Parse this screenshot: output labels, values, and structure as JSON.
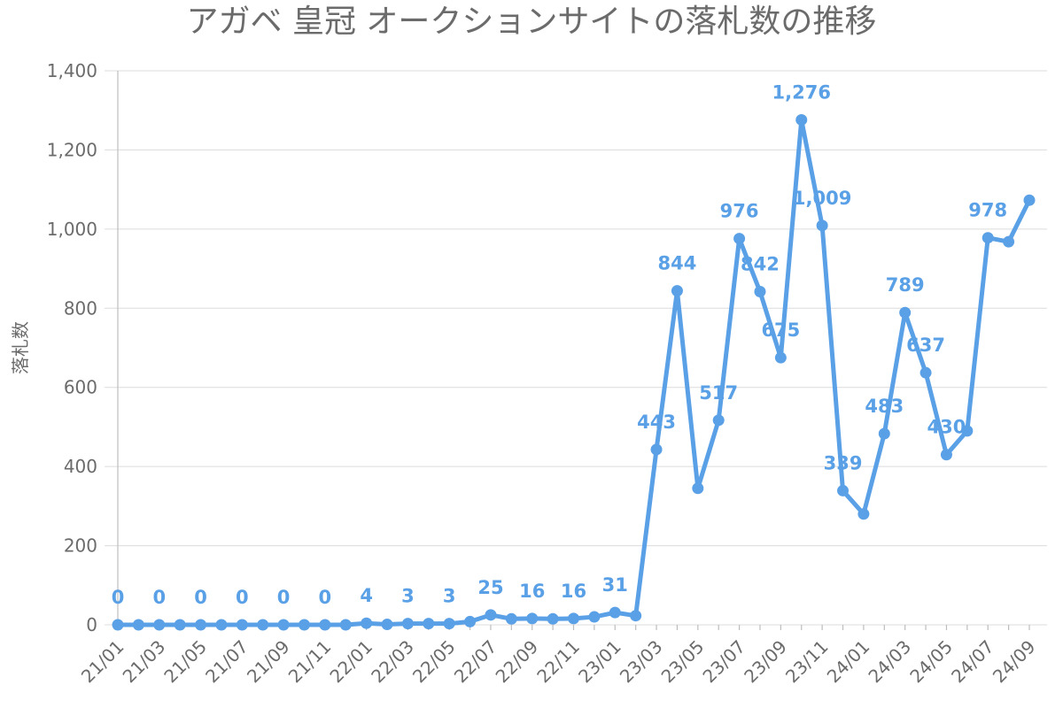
{
  "chart_data": {
    "type": "line",
    "title": "アガベ 皇冠 オークションサイトの落札数の推移",
    "xlabel": "",
    "ylabel": "落札数",
    "ylim": [
      0,
      1400
    ],
    "yticks": [
      "0",
      "200",
      "400",
      "600",
      "800",
      "1,000",
      "1,200",
      "1,400"
    ],
    "grid": true,
    "legend": "none",
    "color": "#5aa0e6",
    "x": [
      "21/01",
      "21/02",
      "21/03",
      "21/04",
      "21/05",
      "21/06",
      "21/07",
      "21/08",
      "21/09",
      "21/10",
      "21/11",
      "21/12",
      "22/01",
      "22/02",
      "22/03",
      "22/04",
      "22/05",
      "22/06",
      "22/07",
      "22/08",
      "22/09",
      "22/10",
      "22/11",
      "22/12",
      "23/01",
      "23/02",
      "23/03",
      "23/04",
      "23/05",
      "23/06",
      "23/07",
      "23/08",
      "23/09",
      "23/10",
      "23/11",
      "23/12",
      "24/01",
      "24/02",
      "24/03",
      "24/04",
      "24/05",
      "24/06",
      "24/07",
      "24/08",
      "24/09"
    ],
    "x_tick_labels": [
      "21/01",
      "21/03",
      "21/05",
      "21/07",
      "21/09",
      "21/11",
      "22/01",
      "22/03",
      "22/05",
      "22/07",
      "22/09",
      "22/11",
      "23/01",
      "23/03",
      "23/05",
      "23/07",
      "23/09",
      "23/11",
      "24/01",
      "24/03",
      "24/05",
      "24/07",
      "24/09"
    ],
    "series": [
      {
        "values": [
          0,
          0,
          0,
          0,
          0,
          0,
          0,
          0,
          0,
          0,
          0,
          0,
          4,
          1,
          3,
          3,
          3,
          8,
          25,
          15,
          16,
          15,
          16,
          20,
          31,
          23,
          443,
          844,
          345,
          517,
          976,
          842,
          675,
          1276,
          1009,
          339,
          280,
          483,
          789,
          637,
          430,
          490,
          978,
          968,
          1073
        ]
      }
    ],
    "data_labels": [
      {
        "index": 0,
        "text": "0"
      },
      {
        "index": 2,
        "text": "0"
      },
      {
        "index": 4,
        "text": "0"
      },
      {
        "index": 6,
        "text": "0"
      },
      {
        "index": 8,
        "text": "0"
      },
      {
        "index": 10,
        "text": "0"
      },
      {
        "index": 12,
        "text": "4"
      },
      {
        "index": 14,
        "text": "3"
      },
      {
        "index": 16,
        "text": "3"
      },
      {
        "index": 18,
        "text": "25"
      },
      {
        "index": 20,
        "text": "16"
      },
      {
        "index": 22,
        "text": "16"
      },
      {
        "index": 24,
        "text": "31"
      },
      {
        "index": 26,
        "text": "443"
      },
      {
        "index": 27,
        "text": "844"
      },
      {
        "index": 29,
        "text": "517"
      },
      {
        "index": 30,
        "text": "976"
      },
      {
        "index": 31,
        "text": "842"
      },
      {
        "index": 32,
        "text": "675"
      },
      {
        "index": 33,
        "text": "1,276"
      },
      {
        "index": 34,
        "text": "1,009"
      },
      {
        "index": 35,
        "text": "339"
      },
      {
        "index": 37,
        "text": "483"
      },
      {
        "index": 38,
        "text": "789"
      },
      {
        "index": 39,
        "text": "637"
      },
      {
        "index": 40,
        "text": "430"
      },
      {
        "index": 42,
        "text": "978"
      }
    ]
  }
}
